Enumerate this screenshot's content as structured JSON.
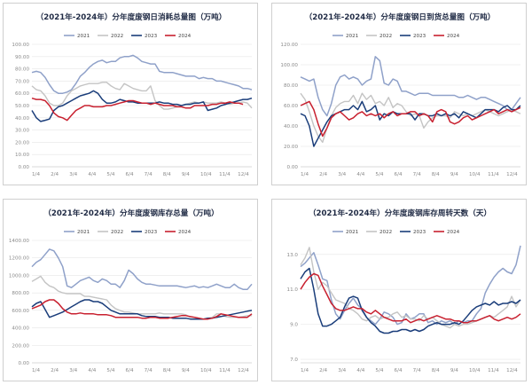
{
  "colors": {
    "2021": "#8fa1c9",
    "2022": "#c4c4c4",
    "2023": "#1a3d7a",
    "2024": "#c8202f"
  },
  "chart_data": [
    {
      "type": "line",
      "title": "（2021年-2024年）分年度废钢日消耗总量图（万吨）",
      "x_ticks": [
        "1/4",
        "2/4",
        "3/4",
        "4/4",
        "5/4",
        "6/4",
        "7/4",
        "8/4",
        "9/4",
        "10/4",
        "11/4",
        "12/4"
      ],
      "y_ticks": [
        "0.00",
        "10.00",
        "20.00",
        "30.00",
        "40.00",
        "50.00",
        "60.00",
        "70.00",
        "80.00",
        "90.00",
        "100.00"
      ],
      "ylim": [
        0,
        100
      ],
      "series": [
        {
          "name": "2021",
          "color": "#8fa1c9",
          "values": [
            77,
            78,
            77,
            73,
            67,
            62,
            60,
            60,
            61,
            63,
            68,
            74,
            77,
            81,
            84,
            86,
            87,
            85,
            86,
            86,
            89,
            90,
            90,
            91,
            89,
            86,
            85,
            84,
            84,
            78,
            77,
            77,
            77,
            76,
            75,
            74,
            74,
            74,
            72,
            73,
            72,
            72,
            70,
            70,
            69,
            68,
            67,
            66,
            64,
            64,
            63
          ]
        },
        {
          "name": "2022",
          "color": "#c4c4c4",
          "values": [
            66,
            63,
            62,
            58,
            52,
            50,
            50,
            52,
            58,
            62,
            64,
            66,
            67,
            68,
            68,
            68,
            69,
            69,
            66,
            64,
            63,
            68,
            66,
            64,
            63,
            62,
            62,
            66,
            54,
            50,
            47,
            47,
            48,
            49,
            50,
            51,
            52,
            53,
            52,
            53,
            52,
            52,
            52,
            53,
            52,
            51,
            52,
            52,
            53,
            52,
            48
          ]
        },
        {
          "name": "2023",
          "color": "#1a3d7a",
          "values": [
            46,
            40,
            37,
            38,
            39,
            46,
            49,
            50,
            52,
            54,
            56,
            58,
            59,
            60,
            62,
            60,
            55,
            52,
            52,
            53,
            55,
            54,
            53,
            53,
            52,
            52,
            52,
            52,
            52,
            53,
            52,
            52,
            51,
            51,
            50,
            51,
            51,
            52,
            52,
            53,
            46,
            47,
            48,
            50,
            51,
            52,
            53,
            54,
            55,
            55,
            56
          ]
        },
        {
          "name": "2024",
          "color": "#c8202f",
          "values": [
            56,
            55,
            55,
            54,
            50,
            44,
            41,
            40,
            38,
            42,
            46,
            48,
            50,
            50,
            49,
            49,
            49,
            50,
            50,
            51,
            52,
            53,
            54,
            54,
            53,
            52,
            52,
            51,
            52,
            51,
            50,
            50,
            50,
            49,
            49,
            48,
            48,
            50,
            50,
            50,
            50,
            51,
            51,
            52,
            52,
            53,
            52,
            52,
            51
          ]
        }
      ]
    },
    {
      "type": "line",
      "title": "（2021年-2024年）分年度废钢日到货总量图（万吨）",
      "x_ticks": [
        "1/4",
        "2/4",
        "3/4",
        "4/4",
        "5/4",
        "6/4",
        "7/4",
        "8/4",
        "9/4",
        "10/4",
        "11/4",
        "12/4"
      ],
      "y_ticks": [
        "0.00",
        "20.00",
        "40.00",
        "60.00",
        "80.00",
        "100.00",
        "120.00"
      ],
      "ylim": [
        0,
        120
      ],
      "series": [
        {
          "name": "2021",
          "color": "#8fa1c9",
          "values": [
            88,
            86,
            84,
            86,
            68,
            56,
            50,
            62,
            80,
            88,
            90,
            86,
            88,
            86,
            80,
            84,
            86,
            108,
            104,
            82,
            80,
            86,
            84,
            74,
            74,
            72,
            70,
            72,
            72,
            72,
            70,
            70,
            70,
            70,
            70,
            70,
            68,
            68,
            70,
            68,
            66,
            68,
            68,
            66,
            64,
            62,
            60,
            56,
            56,
            62,
            68
          ]
        },
        {
          "name": "2022",
          "color": "#c4c4c4",
          "values": [
            72,
            66,
            54,
            40,
            30,
            24,
            38,
            50,
            58,
            62,
            64,
            64,
            70,
            62,
            72,
            66,
            70,
            62,
            64,
            60,
            68,
            58,
            62,
            60,
            54,
            50,
            52,
            50,
            38,
            44,
            48,
            50,
            50,
            50,
            48,
            54,
            52,
            50,
            52,
            50,
            52,
            54,
            56,
            54,
            52,
            50,
            52,
            54,
            56,
            54,
            52
          ]
        },
        {
          "name": "2023",
          "color": "#1a3d7a",
          "values": [
            52,
            50,
            40,
            20,
            28,
            36,
            44,
            50,
            52,
            54,
            56,
            56,
            60,
            56,
            64,
            54,
            56,
            60,
            46,
            52,
            50,
            54,
            52,
            52,
            52,
            52,
            46,
            52,
            52,
            50,
            50,
            52,
            50,
            52,
            50,
            52,
            48,
            54,
            52,
            50,
            48,
            52,
            56,
            56,
            56,
            54,
            58,
            60,
            56,
            56,
            60
          ]
        },
        {
          "name": "2024",
          "color": "#c8202f",
          "values": [
            60,
            62,
            64,
            56,
            42,
            30,
            38,
            48,
            52,
            54,
            50,
            46,
            48,
            52,
            54,
            50,
            52,
            50,
            52,
            48,
            52,
            54,
            50,
            52,
            52,
            54,
            54,
            50,
            52,
            50,
            44,
            54,
            56,
            54,
            44,
            42,
            44,
            48,
            50,
            46,
            48,
            50,
            52,
            54,
            56,
            52,
            54,
            56,
            54,
            56,
            58
          ]
        }
      ]
    },
    {
      "type": "line",
      "title": "（2021年-2024年）分年度废钢库存总量（万吨）",
      "x_ticks": [
        "1/4",
        "2/4",
        "3/4",
        "4/4",
        "5/4",
        "6/4",
        "7/4",
        "8/4",
        "9/4",
        "10/4",
        "11/4",
        "12/4"
      ],
      "y_ticks": [
        "0.00",
        "200.00",
        "400.00",
        "600.00",
        "800.00",
        "1000.00",
        "1200.00",
        "1400.00"
      ],
      "ylim": [
        0,
        1400
      ],
      "series": [
        {
          "name": "2021",
          "color": "#8fa1c9",
          "values": [
            1100,
            1150,
            1180,
            1240,
            1300,
            1280,
            1200,
            1100,
            880,
            860,
            900,
            940,
            960,
            980,
            940,
            920,
            960,
            940,
            900,
            900,
            860,
            940,
            1060,
            1020,
            960,
            920,
            900,
            900,
            890,
            880,
            880,
            880,
            880,
            880,
            870,
            860,
            870,
            880,
            860,
            870,
            860,
            880,
            900,
            880,
            860,
            860,
            900,
            860,
            840,
            840,
            900
          ]
        },
        {
          "name": "2022",
          "color": "#c4c4c4",
          "values": [
            930,
            960,
            990,
            920,
            880,
            860,
            820,
            800,
            790,
            790,
            790,
            790,
            760,
            760,
            750,
            740,
            730,
            720,
            660,
            620,
            600,
            580,
            580,
            570,
            560,
            560,
            560,
            560,
            560,
            570,
            560,
            560,
            560,
            560,
            560,
            550,
            520,
            520,
            500,
            500,
            510,
            520,
            560,
            560,
            530,
            520,
            520,
            520,
            530,
            540,
            540
          ]
        },
        {
          "name": "2023",
          "color": "#1a3d7a",
          "values": [
            640,
            680,
            700,
            610,
            520,
            540,
            560,
            580,
            610,
            640,
            670,
            700,
            720,
            720,
            700,
            700,
            680,
            640,
            600,
            580,
            560,
            560,
            560,
            560,
            560,
            540,
            530,
            530,
            530,
            520,
            520,
            520,
            510,
            510,
            510,
            510,
            500,
            500,
            500,
            500,
            510,
            510,
            520,
            530,
            540,
            550,
            560,
            570,
            580,
            590,
            600
          ]
        },
        {
          "name": "2024",
          "color": "#c8202f",
          "values": [
            620,
            640,
            660,
            700,
            720,
            720,
            680,
            620,
            580,
            560,
            560,
            570,
            560,
            560,
            560,
            550,
            550,
            550,
            540,
            520,
            520,
            520,
            520,
            520,
            520,
            510,
            510,
            520,
            520,
            510,
            510,
            510,
            520,
            530,
            540,
            540,
            530,
            520,
            510,
            500,
            500,
            510,
            530,
            560,
            550,
            540,
            530,
            520,
            520,
            520,
            560
          ]
        }
      ]
    },
    {
      "type": "line",
      "title": "（2021年-2024年）分年度废钢库存周转天数（天）",
      "x_ticks": [
        "1/4",
        "2/4",
        "3/4",
        "4/4",
        "5/4",
        "6/4",
        "7/4",
        "8/4",
        "9/4",
        "10/4",
        "11/4",
        "12/4"
      ],
      "y_ticks": [
        "7.0",
        "9.0",
        "11.0",
        "13.0"
      ],
      "ylim": [
        6.8,
        13.8
      ],
      "series": [
        {
          "name": "2021",
          "color": "#8fa1c9",
          "values": [
            12.3,
            12.5,
            12.8,
            13.1,
            12.4,
            11.6,
            11.5,
            10.4,
            9.6,
            9.3,
            9.8,
            10.2,
            10.5,
            10.1,
            9.9,
            9.4,
            9.2,
            9.0,
            9.3,
            9.7,
            9.6,
            9.4,
            9.0,
            9.1,
            9.6,
            9.3,
            9.4,
            9.6,
            9.6,
            9.1,
            9.2,
            9.0,
            9.2,
            9.1,
            9.2,
            9.0,
            9.2,
            9.1,
            9.2,
            9.2,
            9.6,
            9.9,
            10.8,
            11.3,
            11.7,
            12.0,
            12.2,
            12.0,
            11.9,
            12.4,
            13.5
          ]
        },
        {
          "name": "2022",
          "color": "#c4c4c4",
          "values": [
            12.4,
            12.8,
            13.4,
            12.0,
            11.0,
            11.4,
            11.2,
            10.8,
            10.4,
            10.3,
            10.2,
            9.9,
            9.8,
            9.6,
            9.3,
            9.2,
            9.4,
            9.5,
            9.3,
            9.4,
            9.4,
            9.6,
            9.7,
            9.4,
            9.5,
            9.3,
            9.3,
            9.2,
            9.5,
            9.3,
            9.4,
            9.2,
            9.0,
            8.9,
            8.8,
            9.0,
            8.9,
            9.0,
            9.0,
            9.1,
            9.2,
            9.3,
            9.4,
            9.5,
            9.4,
            9.6,
            9.8,
            10.0,
            10.6,
            10.0,
            10.4
          ]
        },
        {
          "name": "2023",
          "color": "#1a3d7a",
          "values": [
            11.6,
            12.0,
            12.2,
            11.0,
            9.6,
            8.9,
            8.9,
            9.0,
            9.2,
            9.4,
            10.0,
            10.5,
            10.6,
            10.5,
            9.8,
            9.4,
            9.1,
            8.9,
            8.6,
            8.5,
            8.5,
            8.6,
            8.6,
            8.7,
            8.7,
            8.6,
            8.7,
            8.6,
            8.7,
            8.9,
            9.0,
            9.1,
            9.0,
            9.0,
            9.0,
            9.1,
            9.0,
            9.2,
            9.5,
            9.8,
            10.0,
            10.1,
            10.2,
            10.1,
            10.3,
            10.1,
            10.2,
            10.2,
            10.3,
            10.2,
            10.4
          ]
        },
        {
          "name": "2024",
          "color": "#c8202f",
          "values": [
            11.0,
            11.4,
            11.7,
            11.9,
            11.8,
            11.2,
            10.7,
            10.2,
            9.9,
            9.8,
            9.8,
            9.9,
            10.0,
            9.9,
            9.9,
            9.7,
            9.6,
            9.8,
            9.6,
            9.4,
            9.3,
            9.2,
            9.2,
            9.2,
            9.3,
            9.1,
            9.2,
            9.3,
            9.2,
            9.3,
            9.4,
            9.5,
            9.4,
            9.3,
            9.3,
            9.2,
            9.2,
            9.1,
            9.1,
            9.2,
            9.2,
            9.3,
            9.4,
            9.5,
            9.3,
            9.2,
            9.3,
            9.4,
            9.3,
            9.4,
            9.6
          ]
        }
      ]
    }
  ]
}
